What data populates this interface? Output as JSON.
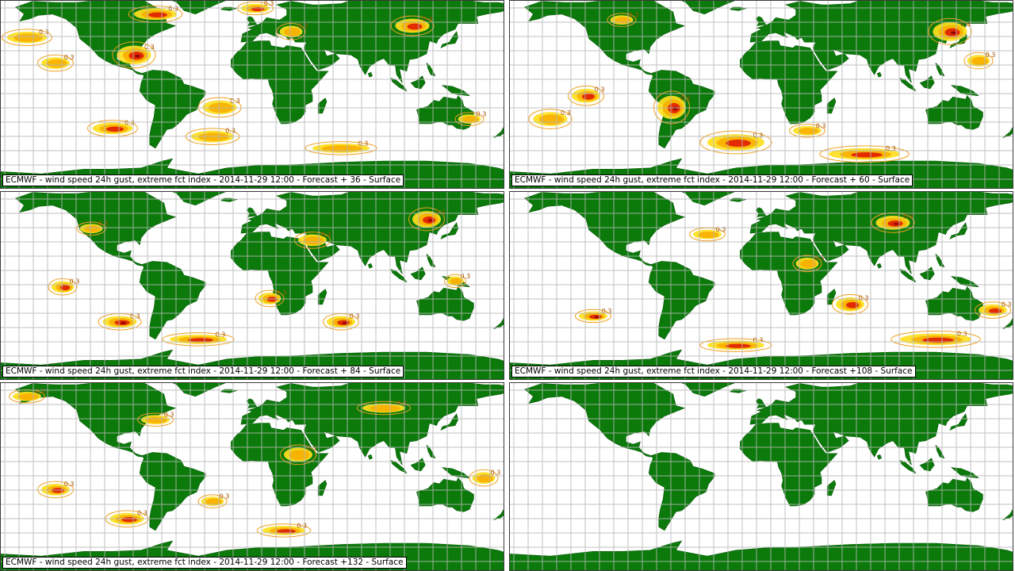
{
  "figure": {
    "panels": [
      {
        "caption": "ECMWF - wind speed 24h gust, extreme fct index - 2014-11-29 12:00 - Forecast + 36 - Surface",
        "forecast_hours": 36,
        "has_overlay": true
      },
      {
        "caption": "ECMWF - wind speed 24h gust, extreme fct index - 2014-11-29 12:00 - Forecast + 60 - Surface",
        "forecast_hours": 60,
        "has_overlay": true
      },
      {
        "caption": "ECMWF - wind speed 24h gust, extreme fct index - 2014-11-29 12:00 - Forecast + 84 - Surface",
        "forecast_hours": 84,
        "has_overlay": true
      },
      {
        "caption": "ECMWF - wind speed 24h gust, extreme fct index - 2014-11-29 12:00 - Forecast +108 - Surface",
        "forecast_hours": 108,
        "has_overlay": true
      },
      {
        "caption": "ECMWF - wind speed 24h gust, extreme fct index - 2014-11-29 12:00 - Forecast +132 - Surface",
        "forecast_hours": 132,
        "has_overlay": true
      },
      {
        "caption": "",
        "forecast_hours": null,
        "has_overlay": false
      }
    ]
  },
  "legend_colors": {
    "land": "#0b7a0b",
    "ocean": "#ffffff",
    "grid": "#b8b8b8",
    "contour": "#f0a020",
    "index_low": "#ffe020",
    "index_mid": "#f8b000",
    "index_high": "#e02000",
    "index_extreme": "#900000"
  },
  "contour_label": "0.3"
}
